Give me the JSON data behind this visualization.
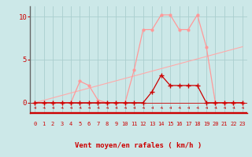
{
  "x": [
    0,
    1,
    2,
    3,
    4,
    5,
    6,
    7,
    8,
    9,
    10,
    11,
    12,
    13,
    14,
    15,
    16,
    17,
    18,
    19,
    20,
    21,
    22,
    23
  ],
  "rafales": [
    0.0,
    0.0,
    0.0,
    0.0,
    0.0,
    2.5,
    2.0,
    0.3,
    0.0,
    0.0,
    0.0,
    3.8,
    8.5,
    8.5,
    10.2,
    10.2,
    8.5,
    8.5,
    10.2,
    6.5,
    0.0,
    0.0,
    0.0,
    0.0
  ],
  "moyen": [
    0.0,
    0.0,
    0.0,
    0.0,
    0.0,
    0.0,
    0.0,
    0.0,
    0.0,
    0.0,
    0.0,
    0.0,
    0.0,
    1.3,
    3.2,
    2.0,
    2.0,
    2.0,
    2.0,
    0.0,
    0.0,
    0.0,
    0.0,
    0.0
  ],
  "trend_x": [
    0,
    23
  ],
  "trend_y": [
    0.0,
    6.5
  ],
  "xlabel": "Vent moyen/en rafales ( km/h )",
  "ylabel_ticks": [
    0,
    5,
    10
  ],
  "ylim": [
    -1.2,
    11.2
  ],
  "xlim": [
    -0.5,
    23.5
  ],
  "bg_color": "#cce8e8",
  "grid_color": "#aacece",
  "line_rafales_color": "#ff9999",
  "line_moyen_color": "#cc0000",
  "trend_color": "#ffaaaa",
  "tick_color": "#cc0000",
  "label_color": "#cc0000",
  "bottom_line_color": "#cc0000",
  "left_spine_color": "#666666"
}
